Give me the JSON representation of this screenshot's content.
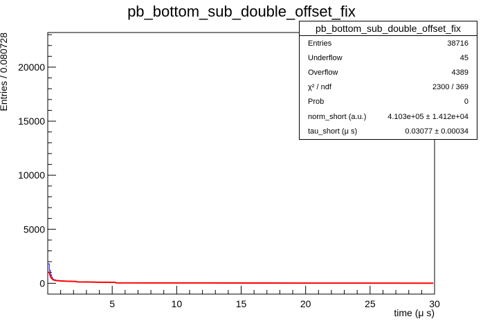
{
  "chart_data": {
    "type": "line",
    "title": "pb_bottom_sub_double_offset_fix",
    "xlabel": "time (μ s)",
    "ylabel": "Entries / 0.080728",
    "xlim": [
      0,
      30
    ],
    "ylim": [
      -1000,
      23200
    ],
    "x_ticks": [
      "5",
      "10",
      "15",
      "20",
      "25",
      "30"
    ],
    "y_ticks": [
      "0",
      "5000",
      "10000",
      "15000",
      "20000"
    ],
    "grid": false,
    "series": [
      {
        "name": "histogram",
        "color": "#0000ff",
        "style": "step",
        "x": [
          0.04,
          0.12,
          0.2,
          0.28,
          0.36,
          0.45,
          0.6,
          0.8,
          1.2,
          1.6,
          2.2,
          3,
          4,
          5.3,
          8,
          12,
          16,
          20,
          25,
          29.9
        ],
        "y": [
          1800,
          1200,
          800,
          550,
          400,
          330,
          270,
          230,
          200,
          180,
          130,
          110,
          90,
          40,
          30,
          25,
          20,
          20,
          15,
          10
        ]
      },
      {
        "name": "fit",
        "color": "#ff0000",
        "style": "line",
        "x": [
          0.1,
          0.2,
          0.3,
          0.4,
          0.5,
          0.7,
          1.0,
          1.5,
          2.2,
          2.3,
          3,
          4,
          5.2,
          5.3,
          8,
          12,
          16,
          20,
          25,
          29.9
        ],
        "y": [
          1100,
          650,
          450,
          340,
          290,
          250,
          220,
          190,
          170,
          130,
          120,
          100,
          90,
          40,
          35,
          30,
          25,
          20,
          15,
          10
        ]
      }
    ]
  },
  "stats_box": {
    "title": "pb_bottom_sub_double_offset_fix",
    "rows": [
      {
        "label": "Entries",
        "value": "38716"
      },
      {
        "label": "Underflow",
        "value": "45"
      },
      {
        "label": "Overflow",
        "value": "4389"
      },
      {
        "label": "χ² / ndf",
        "value": "2300 / 369"
      },
      {
        "label": "Prob",
        "value": "0"
      },
      {
        "label": "norm_short (a.u.)",
        "value": "4.103e+05 ± 1.412e+04"
      },
      {
        "label": "tau_short (μ s)",
        "value": "0.03077 ± 0.00034"
      }
    ]
  }
}
